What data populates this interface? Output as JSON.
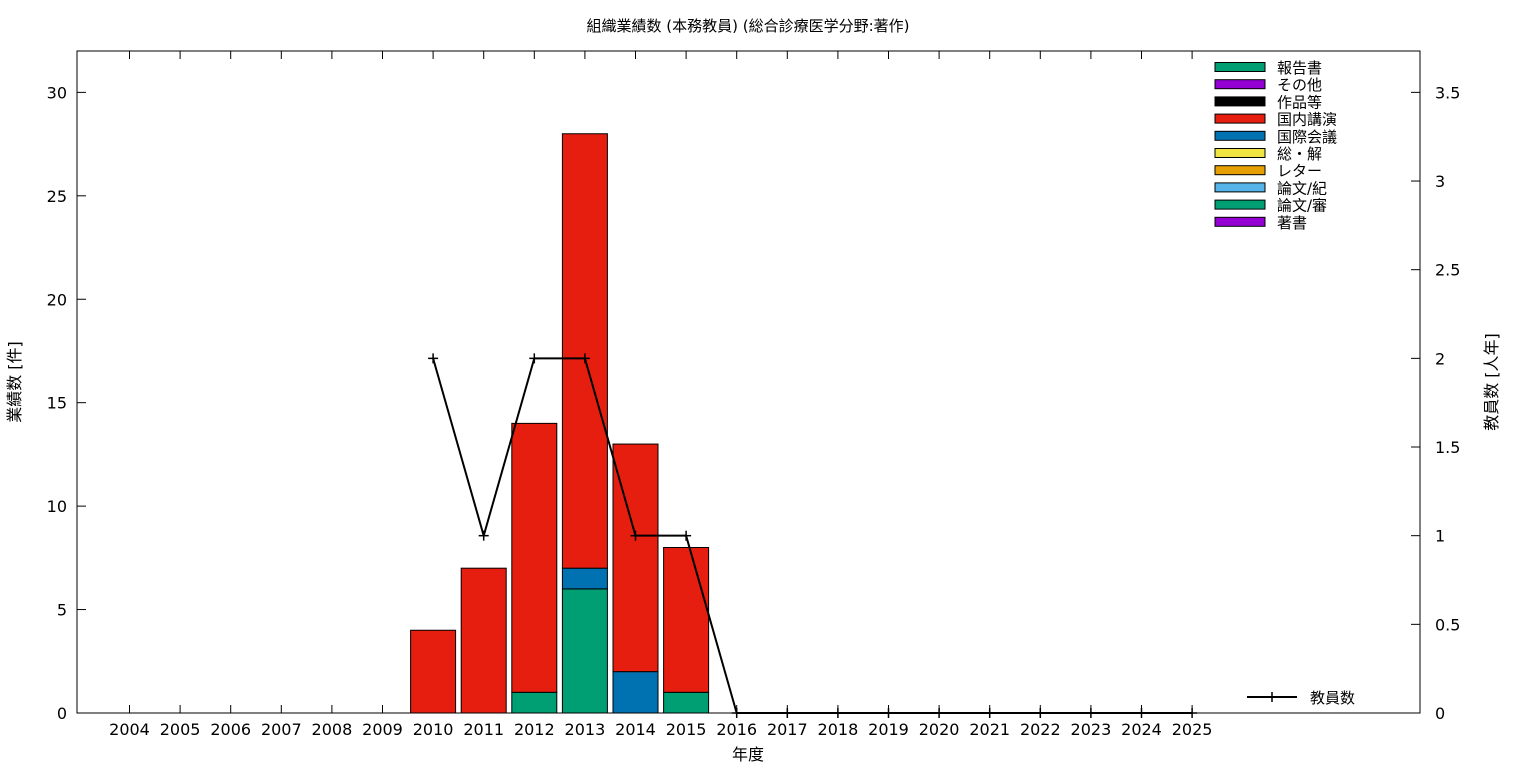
{
  "chart_data": {
    "type": "bar",
    "stacked": true,
    "title": "組織業績数 (本務教員) (総合診療医学分野:著作)",
    "xlabel": "年度",
    "ylabel_left": "業績数 [件]",
    "ylabel_right": "教員数 [人年]",
    "categories": [
      "2004",
      "2005",
      "2006",
      "2007",
      "2008",
      "2009",
      "2010",
      "2011",
      "2012",
      "2013",
      "2014",
      "2015",
      "2016",
      "2017",
      "2018",
      "2019",
      "2020",
      "2021",
      "2022",
      "2023",
      "2024",
      "2025"
    ],
    "ylim_left": [
      0,
      32
    ],
    "yticks_left": [
      0,
      5,
      10,
      15,
      20,
      25,
      30
    ],
    "ylim_right": [
      0,
      3.7333
    ],
    "yticks_right": [
      "0",
      "0.5",
      "1",
      "1.5",
      "2",
      "2.5",
      "3",
      "3.5"
    ],
    "grid": false,
    "legend_position": "top-right",
    "series": [
      {
        "name": "著書",
        "color": "#9400d3",
        "values": [
          0,
          0,
          0,
          0,
          0,
          0,
          0,
          0,
          0,
          0,
          0,
          0,
          0,
          0,
          0,
          0,
          0,
          0,
          0,
          0,
          0,
          0
        ]
      },
      {
        "name": "論文/審",
        "color": "#009e73",
        "values": [
          0,
          0,
          0,
          0,
          0,
          0,
          0,
          0,
          1,
          6,
          0,
          1,
          0,
          0,
          0,
          0,
          0,
          0,
          0,
          0,
          0,
          0
        ]
      },
      {
        "name": "論文/紀",
        "color": "#56b4e9",
        "values": [
          0,
          0,
          0,
          0,
          0,
          0,
          0,
          0,
          0,
          0,
          0,
          0,
          0,
          0,
          0,
          0,
          0,
          0,
          0,
          0,
          0,
          0
        ]
      },
      {
        "name": "レター",
        "color": "#e69f00",
        "values": [
          0,
          0,
          0,
          0,
          0,
          0,
          0,
          0,
          0,
          0,
          0,
          0,
          0,
          0,
          0,
          0,
          0,
          0,
          0,
          0,
          0,
          0
        ]
      },
      {
        "name": "総・解",
        "color": "#f0e442",
        "values": [
          0,
          0,
          0,
          0,
          0,
          0,
          0,
          0,
          0,
          0,
          0,
          0,
          0,
          0,
          0,
          0,
          0,
          0,
          0,
          0,
          0,
          0
        ]
      },
      {
        "name": "国際会議",
        "color": "#0072b2",
        "values": [
          0,
          0,
          0,
          0,
          0,
          0,
          0,
          0,
          0,
          1,
          2,
          0,
          0,
          0,
          0,
          0,
          0,
          0,
          0,
          0,
          0,
          0
        ]
      },
      {
        "name": "国内講演",
        "color": "#e51e10",
        "values": [
          0,
          0,
          0,
          0,
          0,
          0,
          4,
          7,
          13,
          21,
          11,
          7,
          0,
          0,
          0,
          0,
          0,
          0,
          0,
          0,
          0,
          0
        ]
      },
      {
        "name": "作品等",
        "color": "#000000",
        "values": [
          0,
          0,
          0,
          0,
          0,
          0,
          0,
          0,
          0,
          0,
          0,
          0,
          0,
          0,
          0,
          0,
          0,
          0,
          0,
          0,
          0,
          0
        ]
      },
      {
        "name": "その他",
        "color": "#9400d3",
        "values": [
          0,
          0,
          0,
          0,
          0,
          0,
          0,
          0,
          0,
          0,
          0,
          0,
          0,
          0,
          0,
          0,
          0,
          0,
          0,
          0,
          0,
          0
        ]
      },
      {
        "name": "報告書",
        "color": "#009e73",
        "values": [
          0,
          0,
          0,
          0,
          0,
          0,
          0,
          0,
          0,
          0,
          0,
          0,
          0,
          0,
          0,
          0,
          0,
          0,
          0,
          0,
          0,
          0
        ]
      }
    ],
    "line_series": {
      "name": "教員数",
      "color": "#000000",
      "axis": "right",
      "x": [
        "2010",
        "2011",
        "2012",
        "2013",
        "2014",
        "2015",
        "2016",
        "2017",
        "2018",
        "2019",
        "2020",
        "2021",
        "2022",
        "2023",
        "2024",
        "2025"
      ],
      "values": [
        2,
        1,
        2,
        2,
        1,
        1,
        0,
        0,
        0,
        0,
        0,
        0,
        0,
        0,
        0,
        0
      ]
    },
    "legend_order": [
      "報告書",
      "その他",
      "作品等",
      "国内講演",
      "国際会議",
      "総・解",
      "レター",
      "論文/紀",
      "論文/審",
      "著書"
    ]
  }
}
